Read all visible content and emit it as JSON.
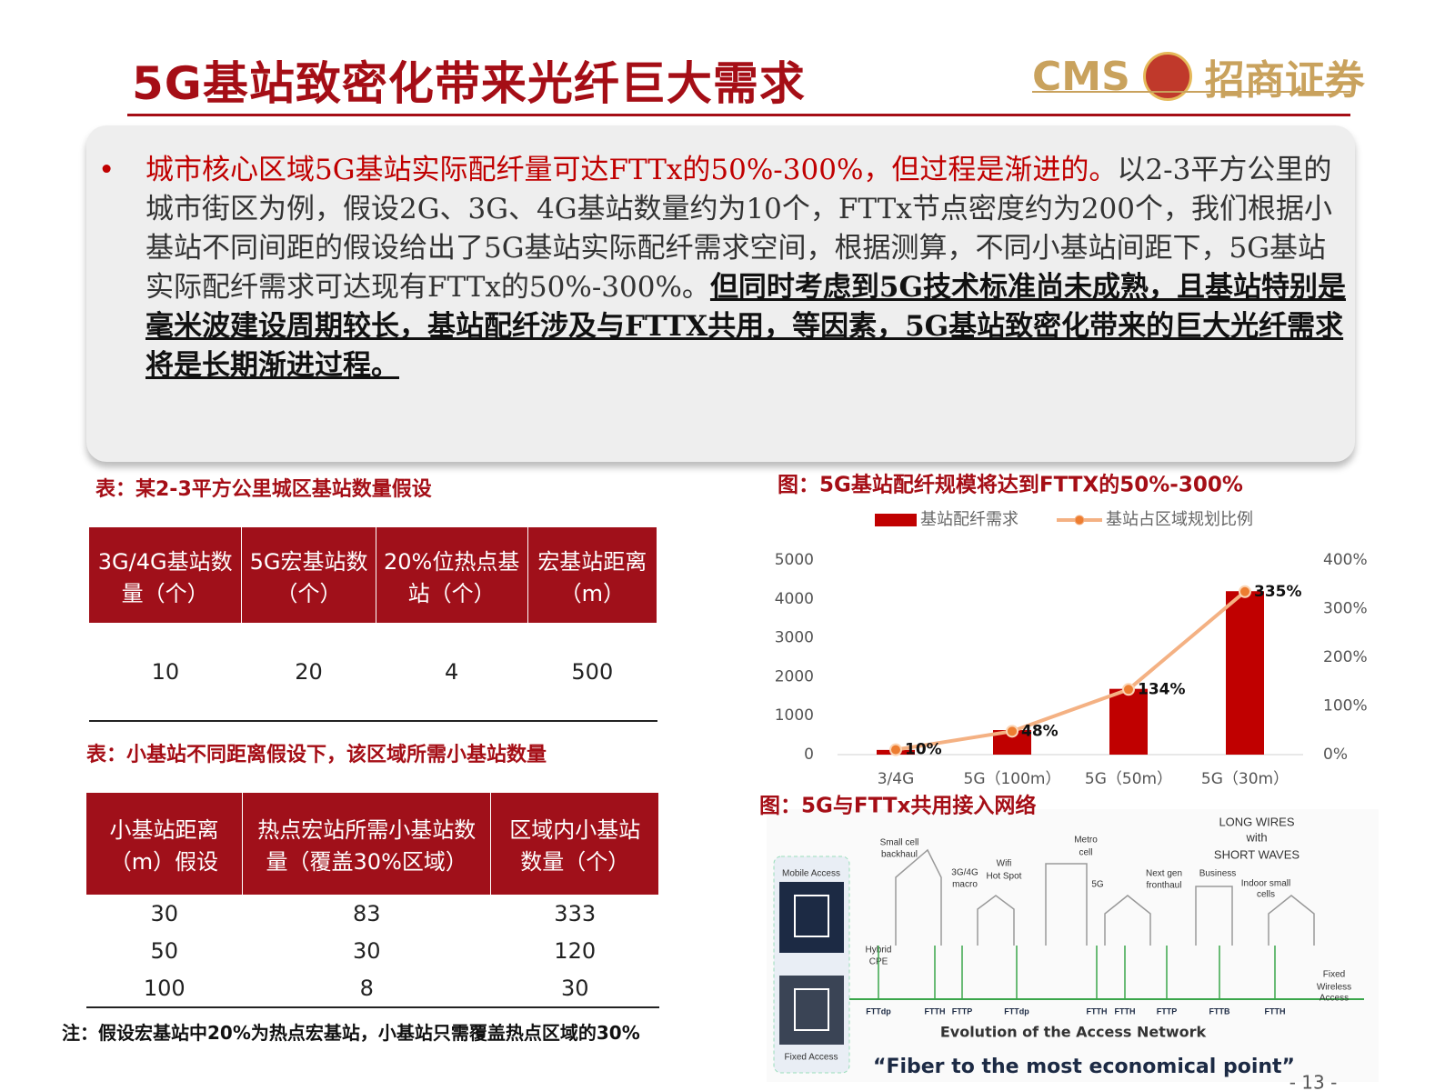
{
  "header": {
    "title": "5G基站致密化带来光纤巨大需求",
    "logo_text": "CMS",
    "logo_cn": "招商证券"
  },
  "bullet": {
    "highlight": "城市核心区域5G基站实际配纤量可达FTTx的50%-300%，但过程是渐进的。",
    "body": "以2-3平方公里的城市街区为例，假设2G、3G、4G基站数量约为10个，FTTx节点密度约为200个，我们根据小基站不同间距的假设给出了5G基站实际配纤需求空间，根据测算，不同小基站间距下，5G基站实际配纤需求可达现有FTTx的50%-300%。",
    "emphasis": "但同时考虑到5G技术标准尚未成熟，且基站特别是毫米波建设周期较长，基站配纤涉及与FTTX共用，等因素，5G基站致密化带来的巨大光纤需求将是长期渐进过程。"
  },
  "table1": {
    "caption": "表：某2-3平方公里城区基站数量假设",
    "columns": [
      "3G/4G基站数量（个）",
      "5G宏基站数（个）",
      "20%位热点基站（个）",
      "宏基站距离（m）"
    ],
    "rows": [
      [
        10,
        20,
        4,
        500
      ]
    ]
  },
  "table2": {
    "caption": "表：小基站不同距离假设下，该区域所需小基站数量",
    "columns": [
      "小基站距离（m）假设",
      "热点宏站所需小基站数量（覆盖30%区域）",
      "区域内小基站数量（个）"
    ],
    "rows": [
      [
        30,
        83,
        333
      ],
      [
        50,
        30,
        120
      ],
      [
        100,
        8,
        30
      ]
    ]
  },
  "note": "注：假设宏基站中20%为热点宏基站，小基站只需覆盖热点区域的30%",
  "chart_data": {
    "type": "bar",
    "title": "图：5G基站配纤规模将达到FTTX的50%-300%",
    "categories": [
      "3/4G",
      "5G（100m）",
      "5G（50m）",
      "5G（30m）"
    ],
    "series": [
      {
        "name": "基站配纤需求",
        "type": "bar",
        "color": "#c00000",
        "values": [
          120,
          630,
          1690,
          4200
        ]
      },
      {
        "name": "基站占区域规划比例",
        "type": "line",
        "color": "#f4b183",
        "axis": "y2",
        "values": [
          10,
          48,
          134,
          335
        ],
        "value_labels": [
          "10%",
          "48%",
          "134%",
          "335%"
        ]
      }
    ],
    "ylim": [
      0,
      5000
    ],
    "yticks": [
      0,
      1000,
      2000,
      3000,
      4000,
      5000
    ],
    "y2lim": [
      0,
      400
    ],
    "y2ticks": [
      {
        "value": 0,
        "label": "0%"
      },
      {
        "value": 100,
        "label": "100%"
      },
      {
        "value": 200,
        "label": "200%"
      },
      {
        "value": 300,
        "label": "300%"
      },
      {
        "value": 400,
        "label": "400%"
      }
    ],
    "legend": "top",
    "grid": false
  },
  "diagram": {
    "title": "图：5G与FTTx共用接入网络",
    "labels": [
      "LONG WIRES",
      "with",
      "SHORT WAVES",
      "Small cell",
      "backhaul",
      "Metro",
      "cell",
      "3G/4G",
      "macro",
      "Wifi",
      "Hot Spot",
      "Next gen",
      "fronthaul",
      "Business",
      "Indoor small",
      "cells",
      "5G",
      "Mobile Access",
      "Hybrid",
      "CPE",
      "Fixed",
      "Wireless",
      "Access",
      "Fixed Access"
    ],
    "fiber": [
      "FTTdp",
      "FTTH",
      "FTTP",
      "FTTdp",
      "FTTH",
      "FTTH",
      "FTTP",
      "FTTB",
      "FTTH"
    ],
    "caption": "Evolution of the Access Network",
    "quote": "“Fiber to the most economical point”"
  },
  "page_number": "- 13 -"
}
